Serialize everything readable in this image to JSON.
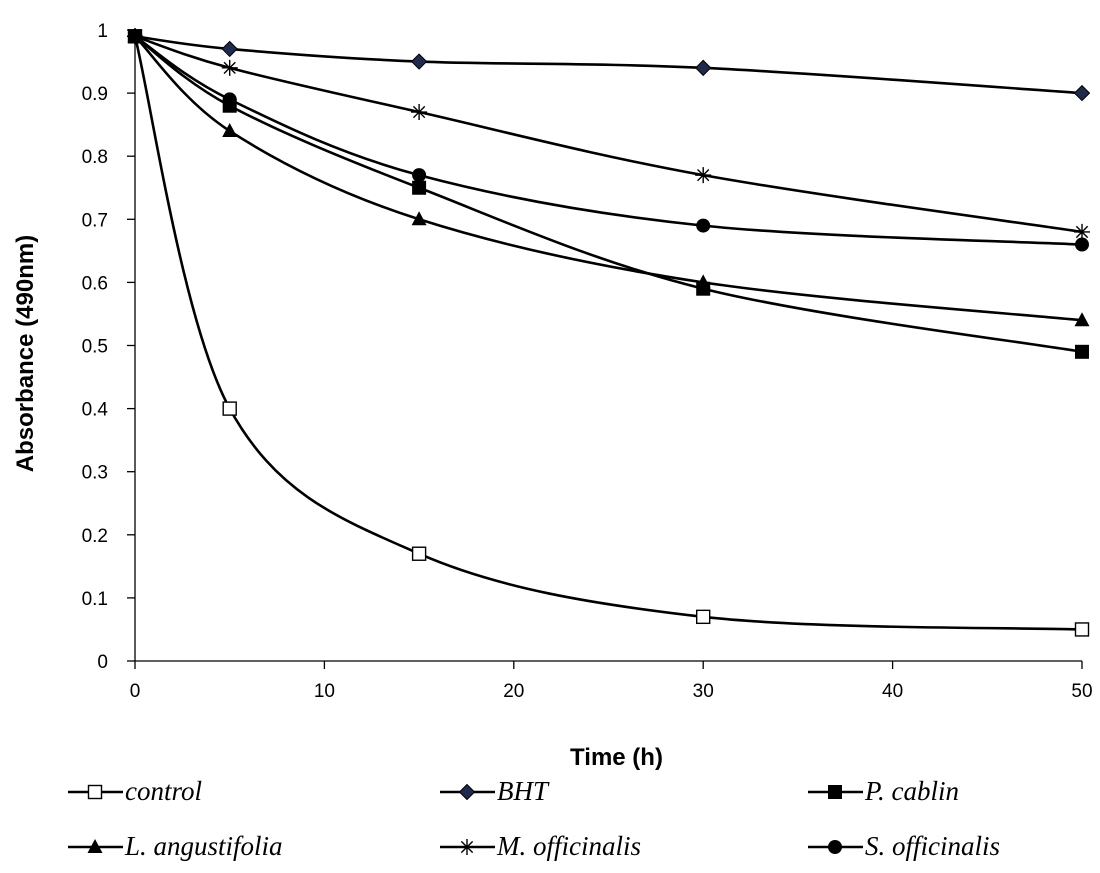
{
  "chart_data": {
    "type": "line",
    "title": "",
    "xlabel": "Time (h)",
    "ylabel": "Absorbance (490nm)",
    "xlim": [
      0,
      50
    ],
    "ylim": [
      0,
      1
    ],
    "xticks": [
      "0",
      "10",
      "20",
      "30",
      "40",
      "50"
    ],
    "yticks": [
      "0",
      "0.1",
      "0.2",
      "0.3",
      "0.4",
      "0.5",
      "0.6",
      "0.7",
      "0.8",
      "0.9",
      "1"
    ],
    "grid": false,
    "legend_position": "bottom",
    "x": [
      0,
      5,
      15,
      30,
      50
    ],
    "series": [
      {
        "name": "control",
        "marker": "square-open",
        "values": [
          0.99,
          0.4,
          0.17,
          0.07,
          0.05
        ]
      },
      {
        "name": "BHT",
        "marker": "diamond",
        "color": "#1f2a4d",
        "values": [
          0.99,
          0.97,
          0.95,
          0.94,
          0.9
        ]
      },
      {
        "name": "P. cablin",
        "marker": "square",
        "values": [
          0.99,
          0.88,
          0.75,
          0.59,
          0.49
        ]
      },
      {
        "name": "L. angustifolia",
        "marker": "triangle",
        "values": [
          0.99,
          0.84,
          0.7,
          0.6,
          0.54
        ]
      },
      {
        "name": "M. officinalis",
        "marker": "star",
        "values": [
          0.99,
          0.94,
          0.87,
          0.77,
          0.68
        ]
      },
      {
        "name": "S. officinalis",
        "marker": "circle",
        "values": [
          0.99,
          0.89,
          0.77,
          0.69,
          0.66
        ]
      }
    ]
  }
}
